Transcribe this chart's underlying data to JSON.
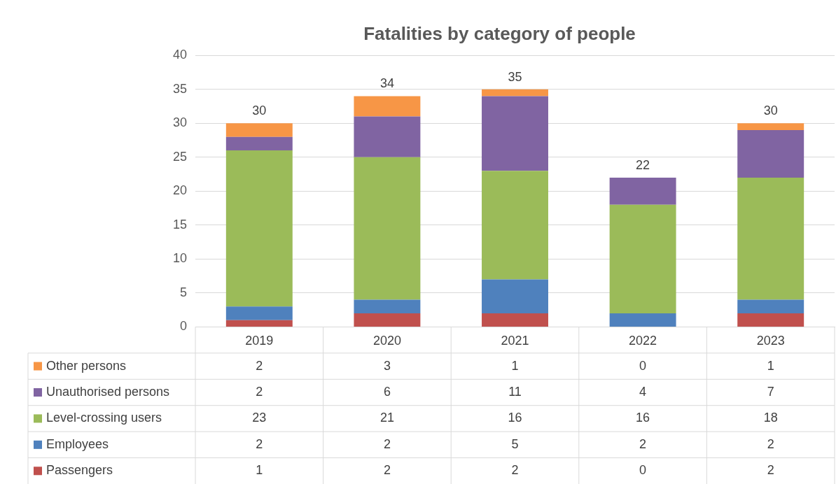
{
  "chart_data": {
    "type": "bar",
    "title": "Fatalities by category of people",
    "stacked": true,
    "categories": [
      "2019",
      "2020",
      "2021",
      "2022",
      "2023"
    ],
    "series": [
      {
        "name": "Passengers",
        "color": "#c0504d",
        "values": [
          1,
          2,
          2,
          0,
          2
        ]
      },
      {
        "name": "Employees",
        "color": "#4f81bd",
        "values": [
          2,
          2,
          5,
          2,
          2
        ]
      },
      {
        "name": "Level-crossing users",
        "color": "#9bbb59",
        "values": [
          23,
          21,
          16,
          16,
          18
        ]
      },
      {
        "name": "Unauthorised persons",
        "color": "#8064a2",
        "values": [
          2,
          6,
          11,
          4,
          7
        ]
      },
      {
        "name": "Other persons",
        "color": "#f79646",
        "values": [
          2,
          3,
          1,
          0,
          1
        ]
      }
    ],
    "ylim": [
      0,
      40
    ],
    "yticks": [
      0,
      5,
      10,
      15,
      20,
      25,
      30,
      35,
      40
    ],
    "grid": "y",
    "legend": "bottom",
    "data_labels": true,
    "totals": [
      "30",
      "34",
      "35",
      "22",
      "30"
    ]
  }
}
